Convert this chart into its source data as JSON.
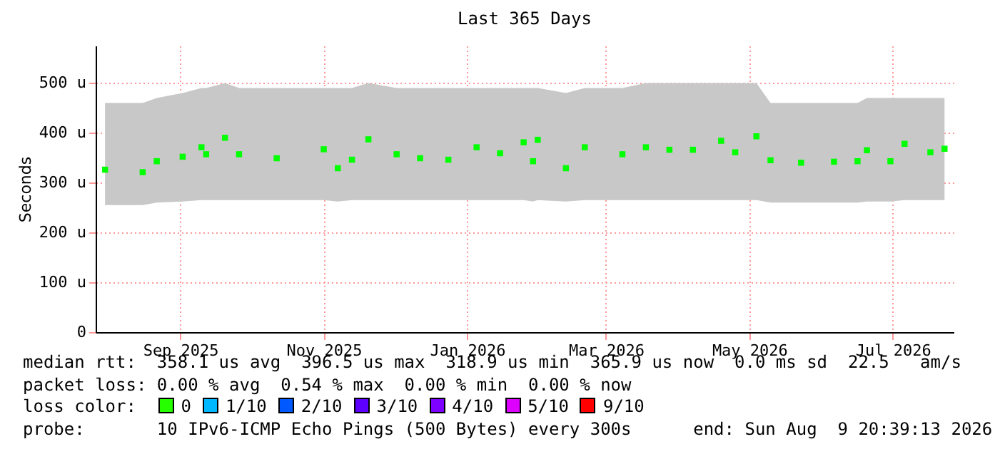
{
  "chart_data": {
    "type": "scatter",
    "title": "Last 365 Days",
    "ylabel": "Seconds",
    "x": [
      "2025-08-14",
      "2025-08-30",
      "2025-09-05",
      "2025-09-16",
      "2025-09-24",
      "2025-09-26",
      "2025-10-04",
      "2025-10-10",
      "2025-10-26",
      "2025-11-15",
      "2025-11-21",
      "2025-11-27",
      "2025-12-04",
      "2025-12-16",
      "2025-12-26",
      "2026-01-07",
      "2026-01-19",
      "2026-01-29",
      "2026-02-08",
      "2026-02-12",
      "2026-02-14",
      "2026-02-26",
      "2026-03-06",
      "2026-03-22",
      "2026-04-01",
      "2026-04-11",
      "2026-04-21",
      "2026-05-03",
      "2026-05-09",
      "2026-05-18",
      "2026-05-24",
      "2026-06-06",
      "2026-06-20",
      "2026-06-30",
      "2026-07-04",
      "2026-07-14",
      "2026-07-20",
      "2026-07-31",
      "2026-08-06"
    ],
    "series": [
      {
        "color": "#00ff00",
        "values": [
          326,
          321,
          343,
          352,
          371,
          357,
          390,
          357,
          349,
          367,
          329,
          346,
          387,
          357,
          349,
          346,
          371,
          359,
          381,
          343,
          386,
          329,
          371,
          357,
          371,
          366,
          366,
          384,
          361,
          393,
          345,
          340,
          342,
          343,
          365,
          343,
          378,
          361,
          368
        ],
        "lower": [
          255,
          255,
          260,
          262,
          265,
          265,
          265,
          265,
          265,
          265,
          262,
          265,
          265,
          265,
          265,
          265,
          265,
          265,
          265,
          262,
          265,
          262,
          265,
          265,
          265,
          265,
          265,
          265,
          265,
          265,
          260,
          260,
          260,
          260,
          262,
          262,
          265,
          265,
          265
        ],
        "upper": [
          460,
          460,
          470,
          480,
          490,
          490,
          500,
          490,
          490,
          490,
          490,
          490,
          500,
          490,
          490,
          490,
          490,
          490,
          490,
          490,
          490,
          480,
          490,
          490,
          500,
          500,
          500,
          500,
          500,
          500,
          460,
          460,
          460,
          460,
          470,
          470,
          470,
          470,
          470
        ]
      }
    ],
    "marker": "square",
    "grid": true,
    "xlim": [
      "2025-08-10",
      "2026-08-09T20:39"
    ],
    "xticks": [
      {
        "value": "2025-09-15",
        "label": "Sep 2025"
      },
      {
        "value": "2025-11-15",
        "label": "Nov 2025"
      },
      {
        "value": "2026-01-15",
        "label": "Jan 2026"
      },
      {
        "value": "2026-03-15",
        "label": "Mar 2026"
      },
      {
        "value": "2026-05-15",
        "label": "May 2026"
      },
      {
        "value": "2026-07-15",
        "label": "Jul 2026"
      }
    ],
    "ylim": [
      0,
      575
    ],
    "yticks": [
      0,
      {
        "value": 100,
        "label": "100 u"
      },
      {
        "value": 200,
        "label": "200 u"
      },
      {
        "value": 300,
        "label": "300 u"
      },
      {
        "value": 400,
        "label": "400 u"
      },
      {
        "value": 500,
        "label": "500 u"
      }
    ],
    "annotations": [
      "median rtt:  358.1 us avg  396.5 us max  318.9 us min  365.9 us now  0.0 ms sd  22.5   am/s",
      "packet loss: 0.00 % avg  0.54 % max  0.00 % min  0.00 % now",
      "loss color:  0  1/10  2/10  3/10  4/10  5/10  9/10",
      "probe:       10 IPv6-ICMP Echo Pings (500 Bytes) every 300s      end: Sun Aug  9 20:39:13 2026"
    ]
  }
}
